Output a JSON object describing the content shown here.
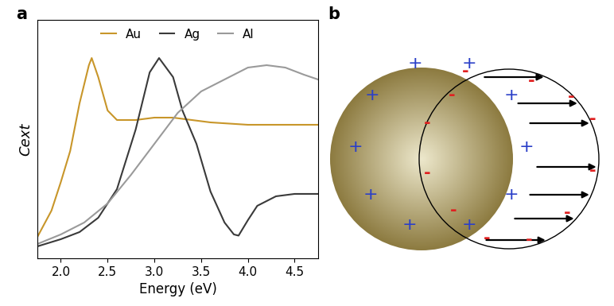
{
  "panel_labels": [
    "a",
    "b"
  ],
  "chart_data": {
    "type": "line",
    "xlabel": "Energy (eV)",
    "ylabel": "Cext",
    "xlim": [
      1.75,
      4.75
    ],
    "xticks": [
      2.0,
      2.5,
      3.0,
      3.5,
      4.0,
      4.5
    ],
    "ylim": [
      0,
      1
    ],
    "yticks": [],
    "tick_labels": "x",
    "legend": "upper center",
    "series": [
      {
        "name": "Au",
        "color": "#c8962a",
        "x": [
          1.75,
          1.9,
          2.0,
          2.1,
          2.2,
          2.3,
          2.33,
          2.4,
          2.5,
          2.6,
          2.8,
          3.0,
          3.2,
          3.4,
          3.6,
          4.0,
          4.5,
          4.75
        ],
        "values": [
          0.09,
          0.2,
          0.32,
          0.45,
          0.65,
          0.81,
          0.84,
          0.76,
          0.62,
          0.58,
          0.58,
          0.59,
          0.59,
          0.58,
          0.57,
          0.56,
          0.56,
          0.56
        ]
      },
      {
        "name": "Ag",
        "color": "#3a3a3a",
        "x": [
          1.75,
          2.0,
          2.2,
          2.4,
          2.6,
          2.8,
          2.95,
          3.05,
          3.2,
          3.3,
          3.45,
          3.6,
          3.75,
          3.85,
          3.9,
          4.0,
          4.1,
          4.3,
          4.5,
          4.75
        ],
        "values": [
          0.05,
          0.08,
          0.11,
          0.17,
          0.29,
          0.54,
          0.78,
          0.84,
          0.76,
          0.62,
          0.48,
          0.28,
          0.15,
          0.1,
          0.095,
          0.16,
          0.22,
          0.26,
          0.27,
          0.27
        ]
      },
      {
        "name": "Al",
        "color": "#9a9a9a",
        "x": [
          1.75,
          2.0,
          2.25,
          2.5,
          2.75,
          3.0,
          3.25,
          3.5,
          3.75,
          4.0,
          4.2,
          4.4,
          4.6,
          4.75
        ],
        "values": [
          0.06,
          0.1,
          0.15,
          0.23,
          0.35,
          0.48,
          0.61,
          0.7,
          0.75,
          0.8,
          0.81,
          0.8,
          0.77,
          0.75
        ]
      }
    ]
  },
  "diagram": {
    "positive_charge": "+",
    "negative_charge": "-"
  }
}
